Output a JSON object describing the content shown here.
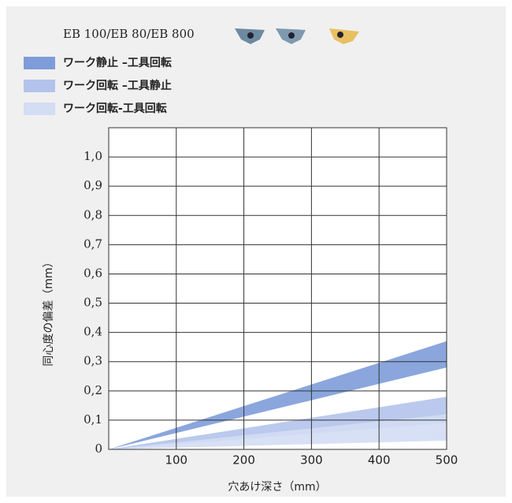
{
  "chart_data": {
    "type": "area-range",
    "title": "EB 100/EB 80/EB 800",
    "x_label": "穴あけ深さ（mm）",
    "y_label": "同心度の偏差（mm）",
    "x": [
      0,
      500
    ],
    "series": [
      {
        "name": "ワーク静止 –工具回転",
        "color": "#7d9cd9",
        "low": [
          0,
          0.28
        ],
        "high": [
          0,
          0.37
        ]
      },
      {
        "name": "ワーク回転 –工具静止",
        "color": "#b3c3eb",
        "low": [
          0,
          0.09
        ],
        "high": [
          0,
          0.18
        ]
      },
      {
        "name": "ワーク回転-工具回転",
        "color": "#d3ddf3",
        "low": [
          0,
          0.03
        ],
        "high": [
          0,
          0.12
        ]
      }
    ],
    "xlim": [
      0,
      500
    ],
    "xticks": [
      100,
      200,
      300,
      400,
      500
    ],
    "ylim": [
      0,
      1.1
    ],
    "yticks": [
      0,
      {
        "value": 0.1,
        "label": "0,1"
      },
      {
        "value": 0.2,
        "label": "0,2"
      },
      {
        "value": 0.3,
        "label": "0,3"
      },
      {
        "value": 0.4,
        "label": "0,4"
      },
      {
        "value": 0.5,
        "label": "0,5"
      },
      {
        "value": 0.6,
        "label": "0,6"
      },
      {
        "value": 0.7,
        "label": "0,7"
      },
      {
        "value": 0.8,
        "label": "0,8"
      },
      {
        "value": 0.9,
        "label": "0,9"
      },
      {
        "value": 1.0,
        "label": "1,0"
      }
    ],
    "grid": true
  }
}
